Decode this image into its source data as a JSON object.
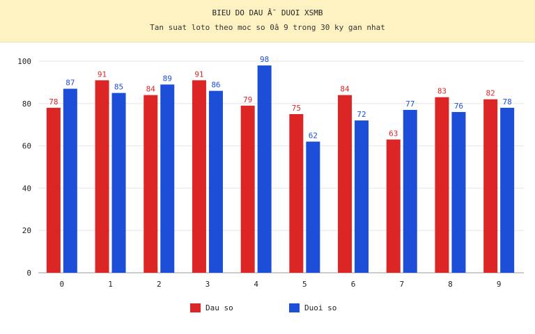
{
  "header": {
    "title": "BIEU DO DAU Â˘ DUOI XSMB",
    "subtitle": "Tan suat loto theo moc so 0â  9 trong 30 ky gan nhat"
  },
  "colors": {
    "dau": "#dc2626",
    "duoi": "#1d4ed8",
    "header_bg": "#fff2c2"
  },
  "legend": {
    "dau_label": "Dau so",
    "duoi_label": "Duoi so"
  },
  "chart_data": {
    "type": "bar",
    "title": "BIEU DO DAU Â˘ DUOI XSMB",
    "subtitle": "Tan suat loto theo moc so 0â  9 trong 30 ky gan nhat",
    "categories": [
      "0",
      "1",
      "2",
      "3",
      "4",
      "5",
      "6",
      "7",
      "8",
      "9"
    ],
    "series": [
      {
        "name": "Dau so",
        "color": "#dc2626",
        "values": [
          78,
          91,
          84,
          91,
          79,
          75,
          84,
          63,
          83,
          82
        ]
      },
      {
        "name": "Duoi so",
        "color": "#1d4ed8",
        "values": [
          87,
          85,
          89,
          86,
          98,
          62,
          72,
          77,
          76,
          78
        ]
      }
    ],
    "ylim": [
      0,
      100
    ],
    "yticks": [
      0,
      20,
      40,
      60,
      80,
      100
    ],
    "grid": true,
    "legend_position": "bottom"
  }
}
